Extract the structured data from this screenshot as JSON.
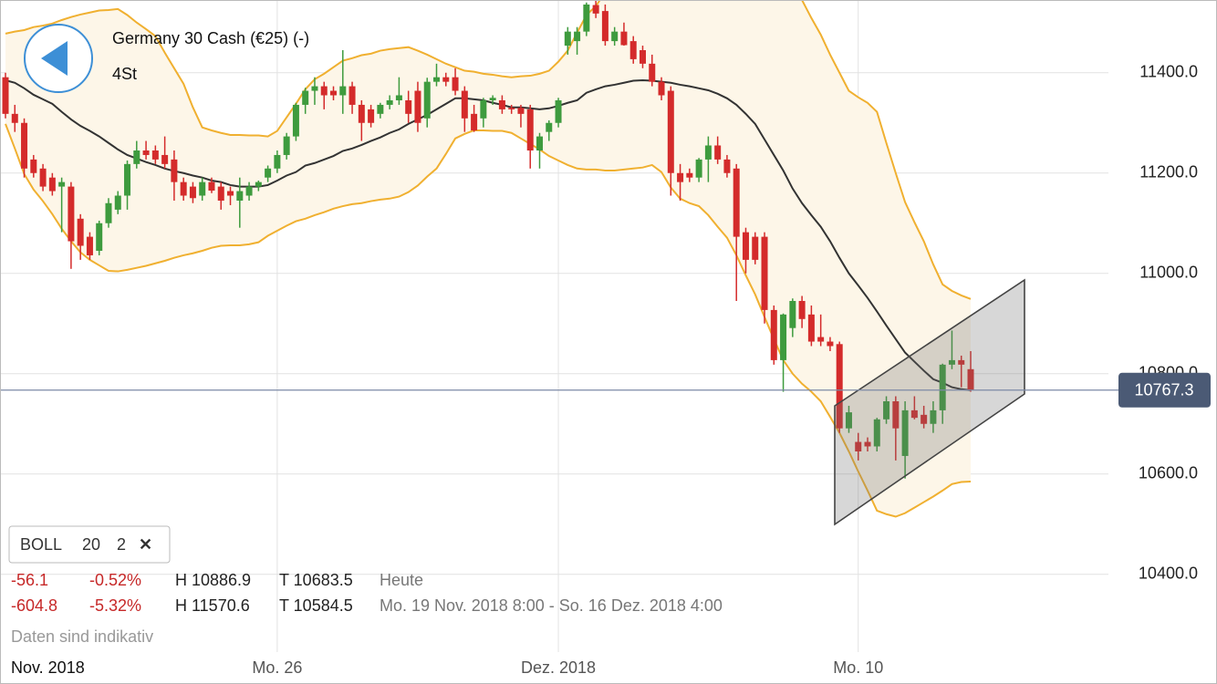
{
  "header": {
    "title": "Germany 30 Cash (€25) (-)",
    "interval": "4St"
  },
  "indicator": {
    "name": "BOLL",
    "period": 20,
    "k": 2,
    "close": "✕"
  },
  "stats": [
    [
      "-56.1",
      "-0.52%",
      "H 10886.9",
      "T 10683.5",
      "Heute"
    ],
    [
      "-604.8",
      "-5.32%",
      "H 11570.6",
      "T 10584.5",
      "Mo. 19 Nov. 2018 8:00 - So. 16 Dez. 2018 4:00"
    ]
  ],
  "disclaimer": "Daten sind indikativ",
  "chart_data": {
    "type": "candlestick",
    "categories": [
      "Nov. 2018",
      null,
      null,
      null,
      null,
      null,
      null,
      null,
      null,
      null,
      null,
      null,
      null,
      null,
      null,
      null,
      null,
      null,
      null,
      null,
      null,
      null,
      null,
      null,
      null,
      null,
      null,
      null,
      null,
      "Mo. 26",
      null,
      null,
      null,
      null,
      null,
      null,
      null,
      null,
      null,
      null,
      null,
      null,
      null,
      null,
      null,
      null,
      null,
      null,
      null,
      null,
      null,
      null,
      null,
      null,
      null,
      null,
      null,
      null,
      null,
      "Dez. 2018",
      null,
      null,
      null,
      null,
      null,
      null,
      null,
      null,
      null,
      null,
      null,
      null,
      null,
      null,
      null,
      null,
      null,
      null,
      null,
      null,
      null,
      null,
      null,
      null,
      null,
      null,
      null,
      null,
      null,
      null,
      null,
      "Mo. 10",
      null,
      null,
      null,
      null,
      null,
      null,
      null,
      null,
      null,
      null,
      null,
      null
    ],
    "open": [
      11391,
      11318,
      11300,
      11227,
      11209,
      11191,
      11173,
      11173,
      11109,
      11073,
      11045,
      11100,
      11127,
      11155,
      11218,
      11245,
      11245,
      11236,
      11227,
      11182,
      11173,
      11155,
      11182,
      11173,
      11164,
      11145,
      11155,
      11173,
      11191,
      11209,
      11236,
      11273,
      11336,
      11364,
      11373,
      11364,
      11355,
      11373,
      11336,
      11327,
      11318,
      11336,
      11345,
      11345,
      11364,
      11309,
      11382,
      11391,
      11391,
      11364,
      11318,
      11309,
      11345,
      11345,
      11330,
      11330,
      11327,
      11245,
      11282,
      11300,
      11454,
      11463,
      11482,
      11535,
      11523,
      11463,
      11482,
      11463,
      11445,
      11418,
      11382,
      11364,
      11200,
      11200,
      11191,
      11227,
      11255,
      11227,
      11209,
      11082,
      11073,
      11073,
      10927,
      10827,
      10891,
      10945,
      10918,
      10873,
      10864,
      10859,
      10691,
      10664,
      10664,
      10655,
      10709,
      10745,
      10636,
      10727,
      10718,
      10700,
      10727,
      10818,
      10827,
      10809
    ],
    "high": [
      11400,
      11336,
      11309,
      11236,
      11218,
      11200,
      11191,
      11182,
      11118,
      11082,
      11105,
      11150,
      11164,
      11225,
      11264,
      11264,
      11255,
      11273,
      11245,
      11191,
      11182,
      11191,
      11191,
      11182,
      11173,
      11191,
      11182,
      11185,
      11215,
      11245,
      11280,
      11340,
      11370,
      11391,
      11382,
      11373,
      11445,
      11382,
      11345,
      11336,
      11340,
      11355,
      11391,
      11364,
      11382,
      11390,
      11418,
      11400,
      11409,
      11373,
      11336,
      11350,
      11355,
      11355,
      11336,
      11336,
      11336,
      11280,
      11305,
      11350,
      11491,
      11491,
      11540,
      11545,
      11536,
      11491,
      11500,
      11473,
      11454,
      11436,
      11391,
      11373,
      11218,
      11209,
      11230,
      11273,
      11273,
      11236,
      11218,
      11091,
      11082,
      11082,
      10936,
      10920,
      10950,
      10955,
      10936,
      10918,
      10873,
      10864,
      10736,
      10682,
      10673,
      10712,
      10755,
      10755,
      10745,
      10755,
      10736,
      10745,
      10820,
      10886,
      10836,
      10845
    ],
    "low": [
      11309,
      11282,
      11191,
      11191,
      11164,
      11155,
      11082,
      11009,
      11027,
      11027,
      11036,
      11091,
      11118,
      11127,
      11209,
      11227,
      11218,
      11209,
      11145,
      11145,
      11140,
      11145,
      11160,
      11127,
      11136,
      11091,
      11145,
      11164,
      11182,
      11200,
      11227,
      11264,
      11318,
      11336,
      11327,
      11345,
      11318,
      11318,
      11264,
      11291,
      11309,
      11327,
      11336,
      11300,
      11282,
      11291,
      11373,
      11373,
      11355,
      11282,
      11282,
      11291,
      11336,
      11318,
      11318,
      11291,
      11209,
      11209,
      11264,
      11291,
      11436,
      11436,
      11473,
      11509,
      11454,
      11454,
      11454,
      11418,
      11409,
      11373,
      11345,
      11155,
      11145,
      11182,
      11182,
      11182,
      11218,
      11191,
      10945,
      11000,
      11018,
      10900,
      10818,
      10764,
      10873,
      10891,
      10855,
      10855,
      10845,
      10682,
      10682,
      10627,
      10645,
      10645,
      10700,
      10627,
      10591,
      10709,
      10691,
      10682,
      10700,
      10809,
      10773,
      10764
    ],
    "close": [
      11318,
      11300,
      11209,
      11200,
      11173,
      11164,
      11182,
      11064,
      11055,
      11036,
      11100,
      11140,
      11155,
      11218,
      11245,
      11236,
      11227,
      11218,
      11182,
      11155,
      11150,
      11182,
      11165,
      11145,
      11155,
      11164,
      11173,
      11182,
      11209,
      11236,
      11273,
      11336,
      11364,
      11373,
      11355,
      11355,
      11373,
      11336,
      11300,
      11300,
      11336,
      11345,
      11355,
      11318,
      11300,
      11382,
      11391,
      11382,
      11364,
      11309,
      11285,
      11345,
      11350,
      11327,
      11327,
      11318,
      11245,
      11273,
      11300,
      11345,
      11482,
      11482,
      11536,
      11518,
      11463,
      11482,
      11455,
      11427,
      11418,
      11382,
      11355,
      11200,
      11182,
      11191,
      11227,
      11255,
      11227,
      11200,
      11073,
      11027,
      11027,
      10927,
      10827,
      10918,
      10945,
      10909,
      10864,
      10864,
      10855,
      10691,
      10723,
      10645,
      10655,
      10709,
      10745,
      10691,
      10727,
      10712,
      10700,
      10727,
      10818,
      10827,
      10818,
      10767
    ],
    "bands": {
      "upper": [
        11478,
        11482,
        11485,
        11491,
        11494,
        11498,
        11505,
        11511,
        11516,
        11520,
        11524,
        11525,
        11527,
        11515,
        11500,
        11487,
        11473,
        11440,
        11409,
        11378,
        11331,
        11291,
        11285,
        11280,
        11276,
        11276,
        11275,
        11275,
        11273,
        11284,
        11311,
        11338,
        11367,
        11387,
        11398,
        11411,
        11424,
        11429,
        11435,
        11438,
        11444,
        11447,
        11449,
        11451,
        11444,
        11436,
        11427,
        11418,
        11411,
        11404,
        11402,
        11398,
        11396,
        11393,
        11391,
        11393,
        11394,
        11398,
        11404,
        11422,
        11444,
        11480,
        11515,
        11533,
        11560,
        11575,
        11590,
        11600,
        11610,
        11615,
        11620,
        11620,
        11620,
        11615,
        11610,
        11605,
        11600,
        11595,
        11590,
        11585,
        11580,
        11575,
        11570,
        11560,
        11555,
        11545,
        11509,
        11476,
        11436,
        11400,
        11364,
        11351,
        11340,
        11322,
        11260,
        11200,
        11142,
        11102,
        11064,
        11018,
        10978,
        10965,
        10956,
        10949
      ],
      "middle": [
        11385,
        11380,
        11369,
        11356,
        11347,
        11338,
        11322,
        11307,
        11294,
        11284,
        11273,
        11260,
        11247,
        11236,
        11229,
        11222,
        11216,
        11209,
        11204,
        11200,
        11195,
        11191,
        11185,
        11182,
        11176,
        11173,
        11173,
        11173,
        11176,
        11185,
        11195,
        11202,
        11215,
        11220,
        11227,
        11234,
        11244,
        11249,
        11256,
        11264,
        11271,
        11280,
        11287,
        11298,
        11307,
        11316,
        11327,
        11338,
        11349,
        11349,
        11347,
        11345,
        11340,
        11336,
        11331,
        11331,
        11329,
        11327,
        11329,
        11334,
        11340,
        11345,
        11360,
        11367,
        11373,
        11376,
        11380,
        11384,
        11385,
        11384,
        11382,
        11380,
        11376,
        11373,
        11369,
        11365,
        11358,
        11349,
        11336,
        11318,
        11298,
        11267,
        11236,
        11205,
        11169,
        11140,
        11116,
        11093,
        11064,
        11031,
        11000,
        10976,
        10951,
        10924,
        10896,
        10869,
        10842,
        10824,
        10806,
        10789,
        10782,
        10773,
        10769,
        10767
      ],
      "lower": [
        11298,
        11249,
        11198,
        11167,
        11144,
        11118,
        11089,
        11064,
        11042,
        11027,
        11016,
        11005,
        11004,
        11007,
        11011,
        11015,
        11020,
        11025,
        11031,
        11036,
        11040,
        11045,
        11051,
        11055,
        11056,
        11056,
        11058,
        11062,
        11075,
        11085,
        11095,
        11104,
        11109,
        11116,
        11122,
        11129,
        11134,
        11138,
        11140,
        11144,
        11147,
        11149,
        11153,
        11162,
        11175,
        11193,
        11209,
        11238,
        11269,
        11278,
        11285,
        11285,
        11284,
        11284,
        11280,
        11269,
        11258,
        11247,
        11234,
        11225,
        11216,
        11209,
        11207,
        11207,
        11205,
        11205,
        11207,
        11209,
        11211,
        11216,
        11202,
        11171,
        11149,
        11140,
        11134,
        11116,
        11093,
        11071,
        11036,
        10996,
        10958,
        10913,
        10869,
        10827,
        10800,
        10780,
        10764,
        10745,
        10714,
        10682,
        10645,
        10605,
        10567,
        10527,
        10520,
        10515,
        10522,
        10533,
        10544,
        10555,
        10567,
        10580,
        10584,
        10585
      ]
    },
    "colors": {
      "up": "#3e9b3e",
      "down": "#d42b2b",
      "band": "#f0b030",
      "band_fill": "#fdf6e8",
      "middle": "#333333",
      "last": "#7c8aa6"
    },
    "last": 10767.3,
    "ylim": [
      10245,
      11545
    ],
    "yticks": [
      {
        "value": 10400,
        "label": "10400.0"
      },
      {
        "value": 10600,
        "label": "10600.0"
      },
      {
        "value": 10800,
        "label": "10800.0"
      },
      {
        "value": 11000,
        "label": "11000.0"
      },
      {
        "value": 11200,
        "label": "11200.0"
      },
      {
        "value": 11400,
        "label": "11400.0"
      }
    ],
    "grid": true
  }
}
